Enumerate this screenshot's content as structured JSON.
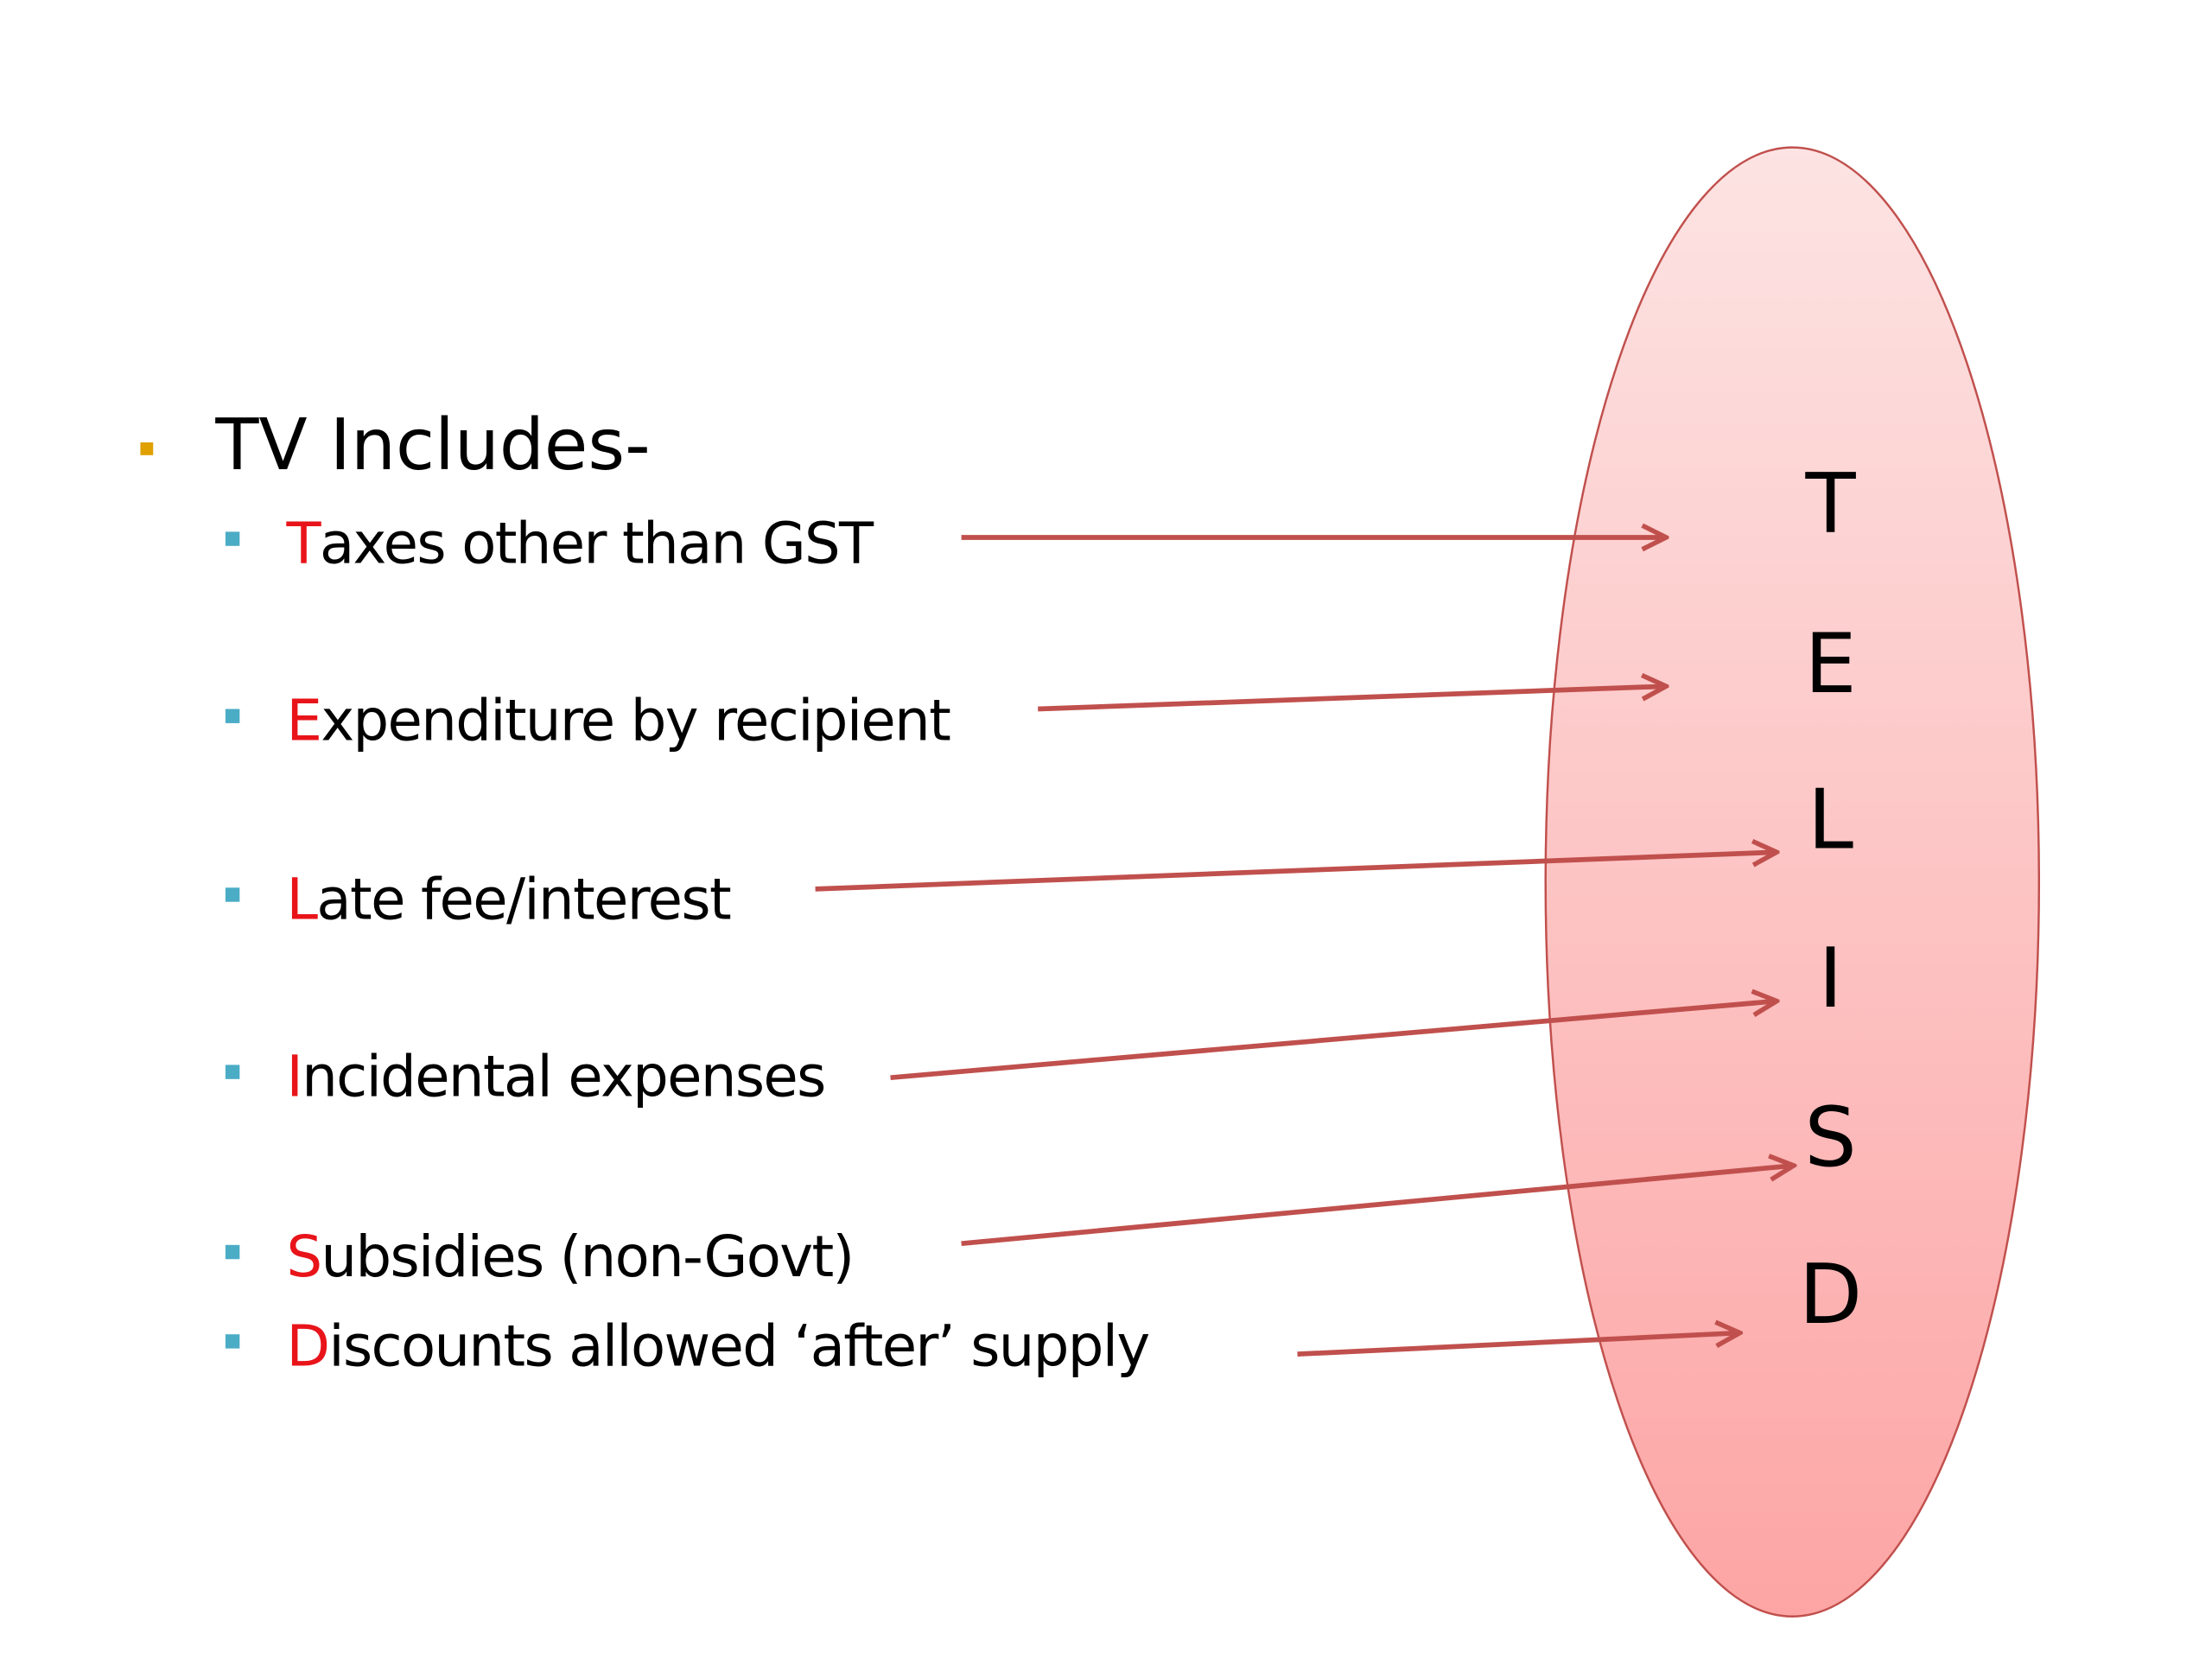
{
  "heading": "TV Includes-",
  "items": [
    {
      "initial": "T",
      "rest": "axes other than GST"
    },
    {
      "initial": "E",
      "rest": "xpenditure by recipient"
    },
    {
      "initial": "L",
      "rest": "ate fee/interest"
    },
    {
      "initial": "I",
      "rest": "ncidental expenses"
    },
    {
      "initial": "S",
      "rest": "ubsidies (non-Govt)"
    },
    {
      "initial": "D",
      "rest": "iscounts allowed ‘after’ supply"
    }
  ],
  "acronym": [
    "T",
    "E",
    "L",
    "I",
    "S",
    "D"
  ]
}
